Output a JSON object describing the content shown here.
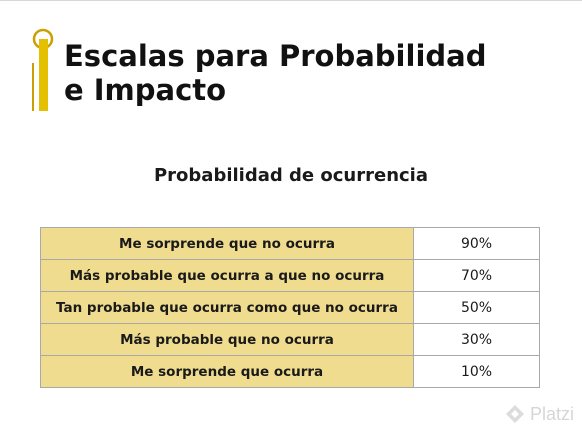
{
  "slide": {
    "title_line1": "Escalas para Probabilidad",
    "title_line2": "e Impacto",
    "accent_color": "#e5c000"
  },
  "table": {
    "title": "Probabilidad de ocurrencia",
    "label_bg": "#f0dc8e",
    "rows": [
      {
        "label": "Me sorprende que no ocurra",
        "value": "90%"
      },
      {
        "label": "Más probable que ocurra a que no ocurra",
        "value": "70%"
      },
      {
        "label": "Tan probable que ocurra como que no ocurra",
        "value": "50%"
      },
      {
        "label": "Más probable que no ocurra",
        "value": "30%"
      },
      {
        "label": "Me sorprende que ocurra",
        "value": "10%"
      }
    ]
  },
  "watermark": {
    "text": "Platzi",
    "icon": "platzi-logo-icon"
  }
}
